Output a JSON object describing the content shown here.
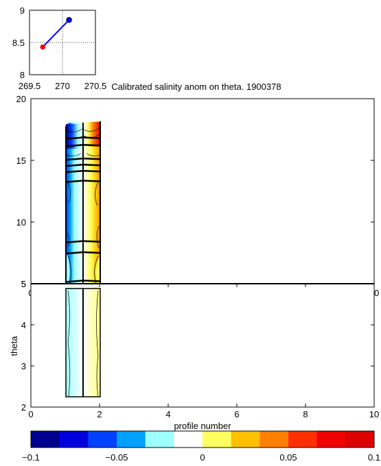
{
  "chart_data": [
    {
      "id": "location",
      "type": "scatter",
      "xlim": [
        269.5,
        270.5
      ],
      "ylim": [
        8,
        9
      ],
      "x_ticks": [
        "269.5",
        "270",
        "270.5"
      ],
      "y_ticks": [
        "8",
        "8.5",
        "9"
      ],
      "grid": "dotted",
      "points": [
        {
          "x": 269.7,
          "y": 8.43,
          "color": "#ff0000"
        },
        {
          "x": 270.1,
          "y": 8.85,
          "color": "#000080"
        }
      ],
      "track_color": "#0000ff"
    },
    {
      "id": "upper",
      "type": "heatmap",
      "title": "Calibrated salinity anom on theta. 1900378",
      "xlim": [
        0,
        10
      ],
      "ylim": [
        5,
        20
      ],
      "y_ticks": [
        "5",
        "10",
        "15",
        "20"
      ],
      "x_ticks": [
        "0",
        "10"
      ],
      "profiles": [
        1,
        2
      ],
      "contour_levels_theta": [
        16.8,
        16.2,
        15.1,
        14.6,
        14.1,
        13.3,
        8.4,
        7.5,
        5.2
      ]
    },
    {
      "id": "lower",
      "type": "heatmap",
      "xlim": [
        0,
        10
      ],
      "ylim": [
        2,
        5
      ],
      "x_ticks": [
        "0",
        "2",
        "4",
        "6",
        "8",
        "10"
      ],
      "y_ticks": [
        "2",
        "3",
        "4",
        "5"
      ],
      "xlabel": "profile number",
      "ylabel": "theta",
      "profiles": [
        1,
        2
      ]
    }
  ],
  "colorbar": {
    "min": -0.1,
    "max": 0.1,
    "tick_labels": [
      "−0.1",
      "−0.05",
      "0",
      "0.05",
      "0.1"
    ],
    "colors": [
      "#00008f",
      "#0000df",
      "#0040ff",
      "#00a0ff",
      "#9fffff",
      "#ffffff",
      "#ffff60",
      "#ffc000",
      "#ff8000",
      "#ff3000",
      "#f00000",
      "#dd0000"
    ]
  }
}
